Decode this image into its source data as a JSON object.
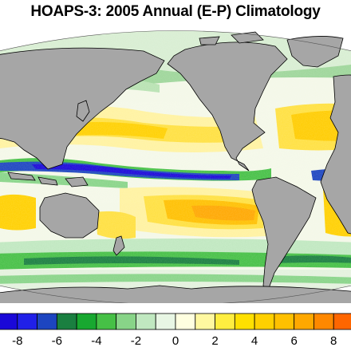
{
  "title": "HOAPS-3: 2005 Annual (E-P) Climatology",
  "colors": {
    "land": "#a6a6a6",
    "coast": "#000000",
    "background": "#ffffff"
  },
  "colorbar": {
    "min": -9,
    "max": 9,
    "bins": [
      "#1a08d8",
      "#2020e8",
      "#1d45c0",
      "#1a7f40",
      "#18a830",
      "#46c046",
      "#88d488",
      "#c0e8c0",
      "#e8f6e4",
      "#ffffe0",
      "#fff8a0",
      "#ffee40",
      "#ffe000",
      "#ffd000",
      "#ffc000",
      "#ffa800",
      "#ff8800",
      "#ff6600"
    ],
    "tick_labels": [
      "-8",
      "-6",
      "-4",
      "-2",
      "0",
      "2",
      "4",
      "6",
      "8"
    ],
    "tick_values": [
      -8,
      -6,
      -4,
      -2,
      0,
      2,
      4,
      6,
      8
    ]
  }
}
